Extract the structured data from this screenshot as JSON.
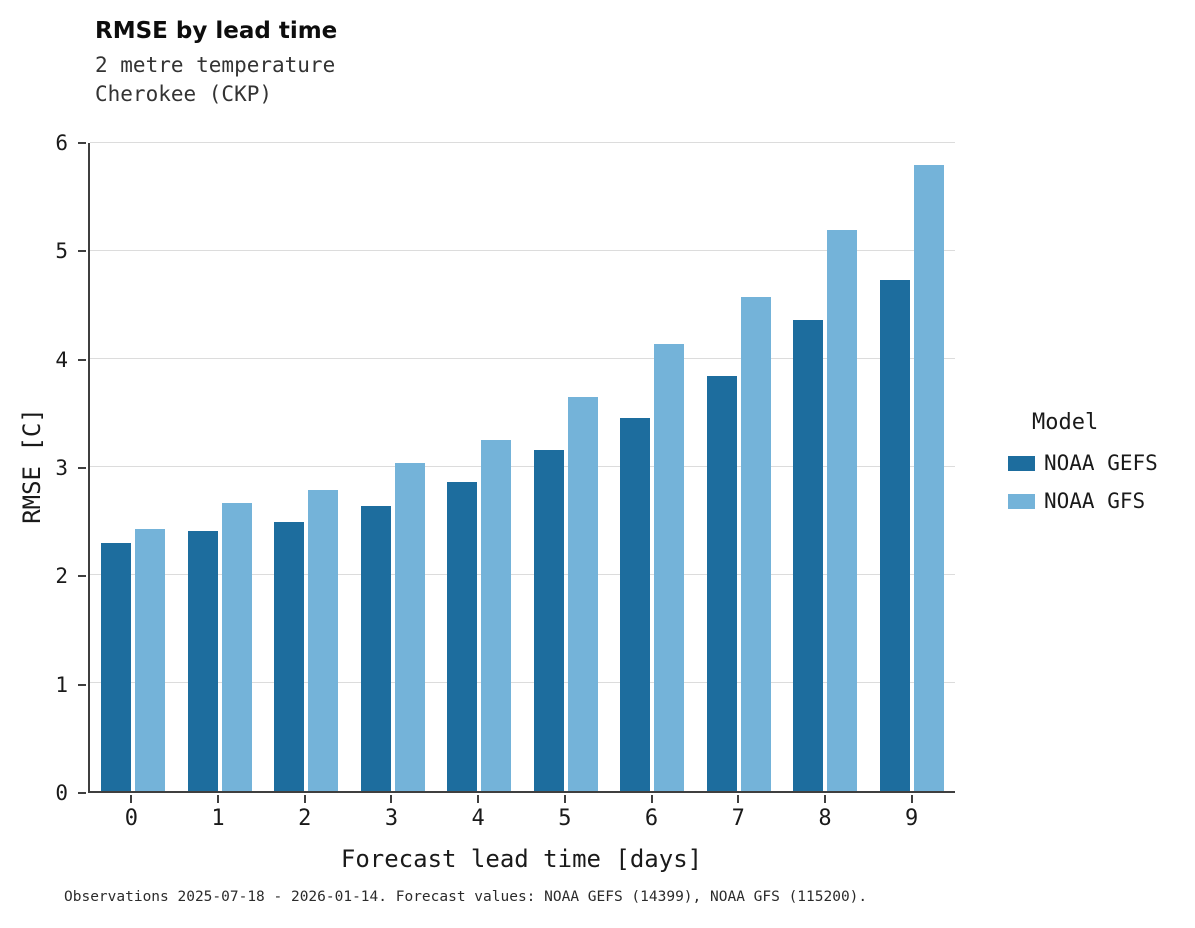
{
  "header": {
    "title": "RMSE by lead time",
    "subtitle1": "2 metre temperature",
    "subtitle2": "Cherokee (CKP)"
  },
  "caption": "Observations 2025-07-18 - 2026-01-14. Forecast values: NOAA GEFS (14399), NOAA GFS (115200).",
  "legend": {
    "title": "Model",
    "entries": [
      {
        "label": "NOAA GEFS",
        "color": "#1d6d9e"
      },
      {
        "label": "NOAA GFS",
        "color": "#74b3d9"
      }
    ]
  },
  "colors": {
    "gefs": "#1d6d9e",
    "gfs": "#74b3d9",
    "gridline": "#dcdcdc",
    "spine": "#3f3f3f"
  },
  "chart_data": {
    "type": "bar",
    "title": "RMSE by lead time",
    "subtitle": [
      "2 metre temperature",
      "Cherokee (CKP)"
    ],
    "xlabel": "Forecast lead time [days]",
    "ylabel": "RMSE [C]",
    "categories": [
      "0",
      "1",
      "2",
      "3",
      "4",
      "5",
      "6",
      "7",
      "8",
      "9"
    ],
    "series": [
      {
        "name": "NOAA GEFS",
        "color": "#1d6d9e",
        "values": [
          2.3,
          2.41,
          2.49,
          2.64,
          2.86,
          3.16,
          3.45,
          3.84,
          4.36,
          4.73
        ]
      },
      {
        "name": "NOAA GFS",
        "color": "#74b3d9",
        "values": [
          2.43,
          2.67,
          2.79,
          3.04,
          3.25,
          3.65,
          4.14,
          4.57,
          5.19,
          5.8
        ]
      }
    ],
    "ylim": [
      0,
      6
    ],
    "yticks": [
      0,
      1,
      2,
      3,
      4,
      5,
      6
    ],
    "grid": true,
    "legend_position": "right"
  }
}
